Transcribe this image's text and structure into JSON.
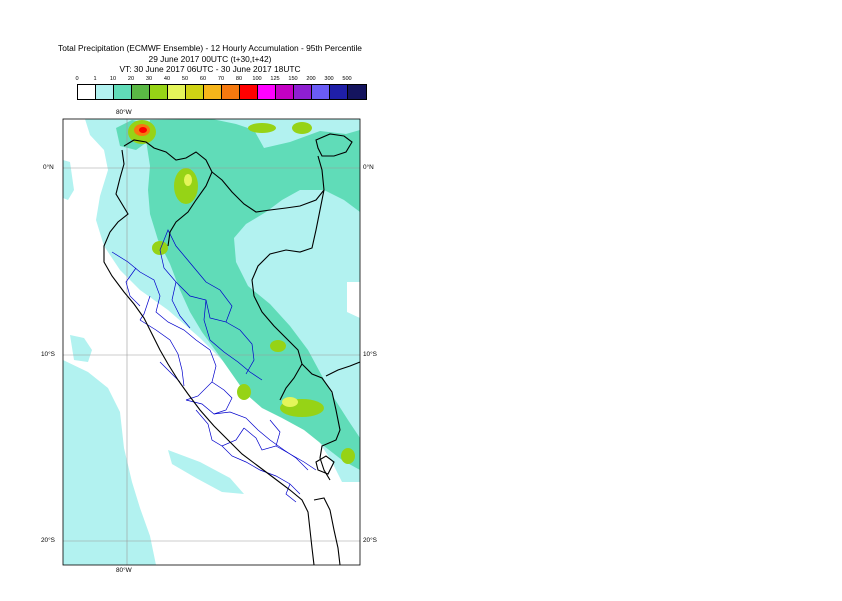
{
  "title": {
    "line1": "Total Precipitation (ECMWF Ensemble) - 12 Hourly Accumulation - 95th Percentile",
    "line2": "29 June 2017 00UTC (t+30,t+42)",
    "line3": "VT: 30 June 2017 06UTC - 30 June 2017 18UTC"
  },
  "legend": {
    "labels": [
      "0",
      "1",
      "10",
      "20",
      "30",
      "40",
      "50",
      "60",
      "70",
      "80",
      "100",
      "125",
      "150",
      "200",
      "300",
      "500"
    ],
    "colors": [
      "#ffffff",
      "#b2f2f0",
      "#60dcb8",
      "#5ab845",
      "#96d316",
      "#e4f55a",
      "#cfd314",
      "#f6b51a",
      "#f5790f",
      "#ff0000",
      "#ff00ff",
      "#c400c4",
      "#8e1fd1",
      "#6a5cf5",
      "#1f1fa8",
      "#14145e"
    ]
  },
  "axes": {
    "lon_top": "80°W",
    "lon_bottom": "80°W",
    "lat_left": [
      "0°N",
      "10°S",
      "20°S"
    ],
    "lat_right": [
      "0°N",
      "10°S",
      "20°S"
    ]
  },
  "colors": {
    "water": "#ffffff",
    "light_precip": "#b2f2f0",
    "moderate_precip": "#60dcb8",
    "heavy_precip": "#96d316",
    "grid": "#9a9a9a",
    "country_border": "#000000",
    "region_border": "#0000cc"
  }
}
